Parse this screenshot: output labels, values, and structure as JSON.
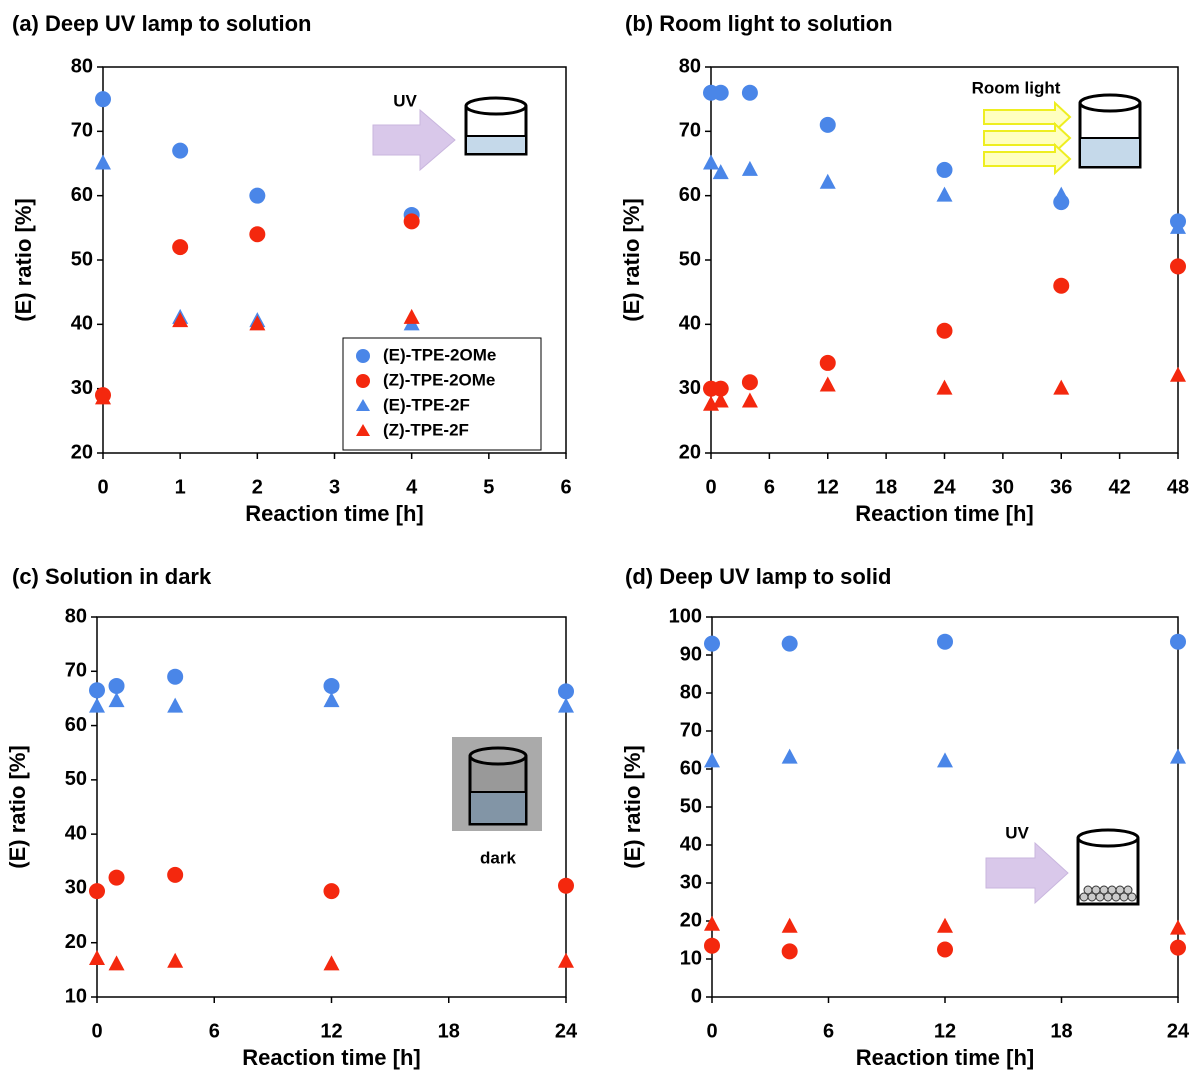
{
  "chart_data": [
    {
      "type": "scatter",
      "title": "(a) Deep UV lamp to solution",
      "x_label": "Reaction time [h]",
      "y_label": "(E) ratio [%]",
      "annotation": "UV",
      "x": [
        0,
        1,
        2,
        4
      ],
      "xlim": [
        0,
        6
      ],
      "xticks": [
        0,
        1,
        2,
        3,
        4,
        5,
        6
      ],
      "ylim": [
        20,
        80
      ],
      "yticks": [
        20,
        30,
        40,
        50,
        60,
        70,
        80
      ],
      "legend": "lower right",
      "series": [
        {
          "name": "(E)-TPE-2OMe",
          "color": "#4a86e8",
          "marker": "circle",
          "values": [
            75,
            67,
            60,
            57
          ]
        },
        {
          "name": "(Z)-TPE-2OMe",
          "color": "#f4280e",
          "marker": "circle",
          "values": [
            29,
            52,
            54,
            56
          ]
        },
        {
          "name": "(E)-TPE-2F",
          "color": "#4a86e8",
          "marker": "triangle",
          "values": [
            65,
            41,
            40.5,
            40
          ]
        },
        {
          "name": "(Z)-TPE-2F",
          "color": "#f4280e",
          "marker": "triangle",
          "values": [
            28.5,
            40.5,
            40,
            41
          ]
        }
      ]
    },
    {
      "type": "scatter",
      "title": "(b) Room light to solution",
      "x_label": "Reaction time [h]",
      "y_label": "(E) ratio [%]",
      "annotation": "Room light",
      "x": [
        0,
        1,
        4,
        12,
        24,
        36,
        48
      ],
      "xlim": [
        0,
        48
      ],
      "xticks": [
        0,
        6,
        12,
        18,
        24,
        30,
        36,
        42,
        48
      ],
      "ylim": [
        20,
        80
      ],
      "yticks": [
        20,
        30,
        40,
        50,
        60,
        70,
        80
      ],
      "series": [
        {
          "color": "#4a86e8",
          "marker": "circle",
          "values": [
            76,
            76,
            76,
            71,
            64,
            59,
            56
          ]
        },
        {
          "color": "#f4280e",
          "marker": "circle",
          "values": [
            30,
            30,
            31,
            34,
            39,
            46,
            49
          ]
        },
        {
          "color": "#4a86e8",
          "marker": "triangle",
          "values": [
            65,
            63.5,
            64,
            62,
            60,
            60,
            55
          ]
        },
        {
          "color": "#f4280e",
          "marker": "triangle",
          "values": [
            27.5,
            28,
            28,
            30.5,
            30,
            30,
            32
          ]
        }
      ]
    },
    {
      "type": "scatter",
      "title": "(c) Solution in dark",
      "x_label": "Reaction time [h]",
      "y_label": "(E) ratio [%]",
      "annotation": "dark",
      "x": [
        0,
        1,
        4,
        12,
        24
      ],
      "xlim": [
        0,
        24
      ],
      "xticks": [
        0,
        6,
        12,
        18,
        24
      ],
      "ylim": [
        10,
        80
      ],
      "yticks": [
        10,
        20,
        30,
        40,
        50,
        60,
        70,
        80
      ],
      "series": [
        {
          "color": "#4a86e8",
          "marker": "circle",
          "values": [
            66.5,
            67.3,
            69,
            67.3,
            66.3
          ]
        },
        {
          "color": "#f4280e",
          "marker": "circle",
          "values": [
            29.5,
            32,
            32.5,
            29.5,
            30.5
          ]
        },
        {
          "color": "#4a86e8",
          "marker": "triangle",
          "values": [
            63.5,
            64.5,
            63.5,
            64.5,
            63.5
          ]
        },
        {
          "color": "#f4280e",
          "marker": "triangle",
          "values": [
            17,
            16,
            16.5,
            16,
            16.5
          ]
        }
      ]
    },
    {
      "type": "scatter",
      "title": "(d) Deep UV lamp to solid",
      "x_label": "Reaction time [h]",
      "y_label": "(E) ratio [%]",
      "annotation": "UV",
      "x": [
        0,
        4,
        12,
        24
      ],
      "xlim": [
        0,
        24
      ],
      "xticks": [
        0,
        6,
        12,
        18,
        24
      ],
      "ylim": [
        0,
        100
      ],
      "yticks": [
        0,
        10,
        20,
        30,
        40,
        50,
        60,
        70,
        80,
        90,
        100
      ],
      "series": [
        {
          "color": "#4a86e8",
          "marker": "circle",
          "values": [
            93,
            93,
            93.5,
            93.5
          ]
        },
        {
          "color": "#f4280e",
          "marker": "circle",
          "values": [
            13.5,
            12,
            12.5,
            13
          ]
        },
        {
          "color": "#4a86e8",
          "marker": "triangle",
          "values": [
            62,
            63,
            62,
            63
          ]
        },
        {
          "color": "#f4280e",
          "marker": "triangle",
          "values": [
            19,
            18.5,
            18.5,
            18
          ]
        }
      ]
    }
  ]
}
